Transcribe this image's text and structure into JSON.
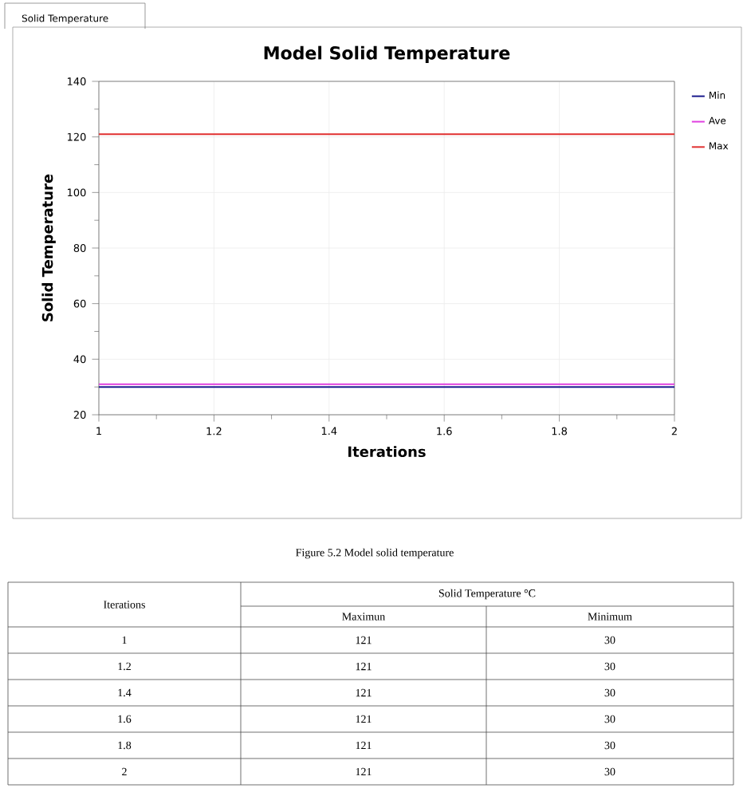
{
  "chart_data": {
    "type": "line",
    "title": "Model Solid Temperature",
    "xlabel": "Iterations",
    "ylabel": "Solid Temperature",
    "x": [
      1,
      2
    ],
    "series": [
      {
        "name": "Min",
        "color": "#1a1a8c",
        "values": [
          30,
          30
        ]
      },
      {
        "name": "Ave",
        "color": "#e040e0",
        "values": [
          31,
          31
        ]
      },
      {
        "name": "Max",
        "color": "#e03030",
        "values": [
          121,
          121
        ]
      }
    ],
    "xlim": [
      1,
      2
    ],
    "ylim": [
      20,
      140
    ],
    "xticks": [
      1,
      1.2,
      1.4,
      1.6,
      1.8,
      2
    ],
    "yticks": [
      20,
      40,
      60,
      80,
      100,
      120,
      140
    ],
    "grid": true,
    "legend": "right",
    "marker": "none",
    "line_style": "solid",
    "annotations": [
      "Solid Temperature",
      "Figure 5.2 Model solid temperature",
      "Iterations",
      "Solid Temperature °C",
      "Maximun",
      "Minimum",
      "1",
      "121",
      "30",
      "1.2",
      "121",
      "30",
      "1.4",
      "121",
      "30",
      "1.6",
      "121",
      "30",
      "1.8",
      "121",
      "30",
      "2",
      "121",
      "30"
    ]
  }
}
